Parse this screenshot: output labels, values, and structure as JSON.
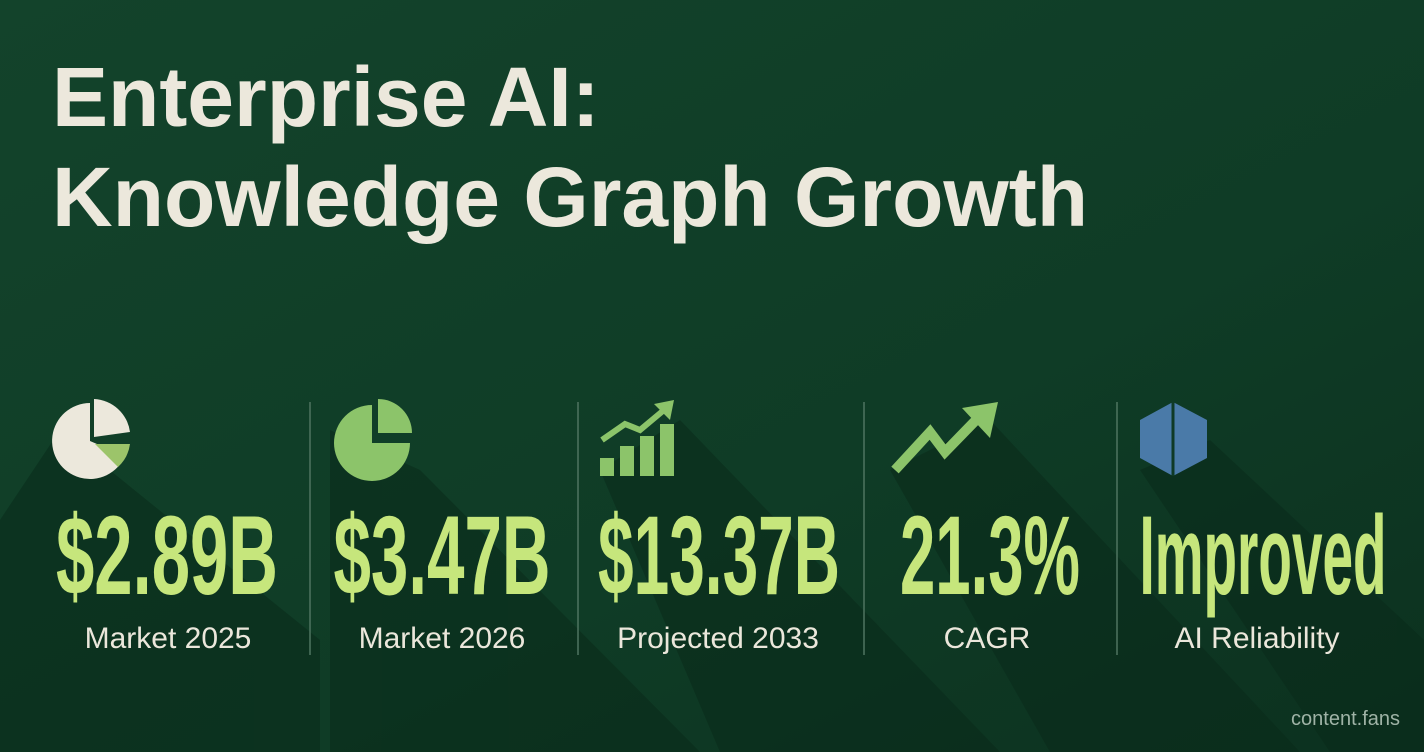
{
  "title": {
    "line1": "Enterprise AI:",
    "line2": "Knowledge Graph Growth"
  },
  "stats": [
    {
      "value": "$2.89B",
      "label": "Market 2025"
    },
    {
      "value": "$3.47B",
      "label": "Market 2026"
    },
    {
      "value": "$13.37B",
      "label": "Projected 2033"
    },
    {
      "value": "21.3%",
      "label": "CAGR"
    },
    {
      "value": "Improved",
      "label": "AI Reliability"
    }
  ],
  "footer": "content.fans"
}
